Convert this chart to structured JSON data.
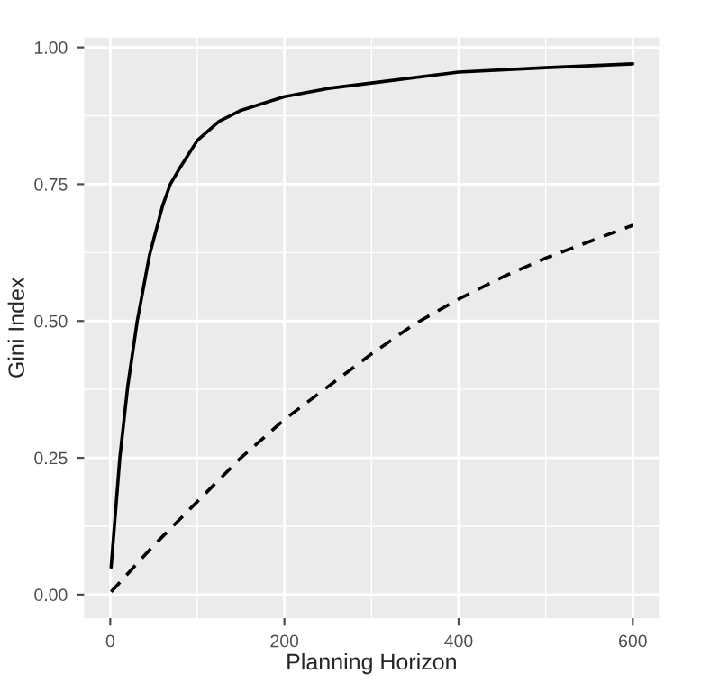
{
  "chart_data": {
    "type": "line",
    "xlabel": "Planning Horizon",
    "ylabel": "Gini Index",
    "xlim": [
      -30,
      630
    ],
    "ylim": [
      -0.043,
      1.018
    ],
    "xticks": [
      0,
      200,
      400,
      600
    ],
    "yticks": [
      {
        "value": 0,
        "label": "0.00"
      },
      {
        "value": 0.25,
        "label": "0.25"
      },
      {
        "value": 0.5,
        "label": "0.50"
      },
      {
        "value": 0.75,
        "label": "0.75"
      },
      {
        "value": 1,
        "label": "1.00"
      }
    ],
    "grid": true,
    "legend": false,
    "series": [
      {
        "color": "#000000",
        "line_style": "solid",
        "x": [
          1,
          5,
          11,
          20,
          31,
          45,
          60,
          69,
          80,
          100,
          125,
          150,
          200,
          250,
          300,
          400,
          500,
          600
        ],
        "values": [
          0.05,
          0.13,
          0.25,
          0.38,
          0.5,
          0.62,
          0.71,
          0.75,
          0.78,
          0.83,
          0.865,
          0.885,
          0.91,
          0.925,
          0.935,
          0.955,
          0.963,
          0.97
        ]
      },
      {
        "color": "#000000",
        "line_style": "dashed",
        "x": [
          1,
          50,
          100,
          150,
          200,
          250,
          300,
          350,
          400,
          450,
          500,
          550,
          600
        ],
        "values": [
          0.005,
          0.09,
          0.17,
          0.25,
          0.32,
          0.38,
          0.44,
          0.495,
          0.54,
          0.58,
          0.615,
          0.645,
          0.675
        ]
      }
    ]
  }
}
